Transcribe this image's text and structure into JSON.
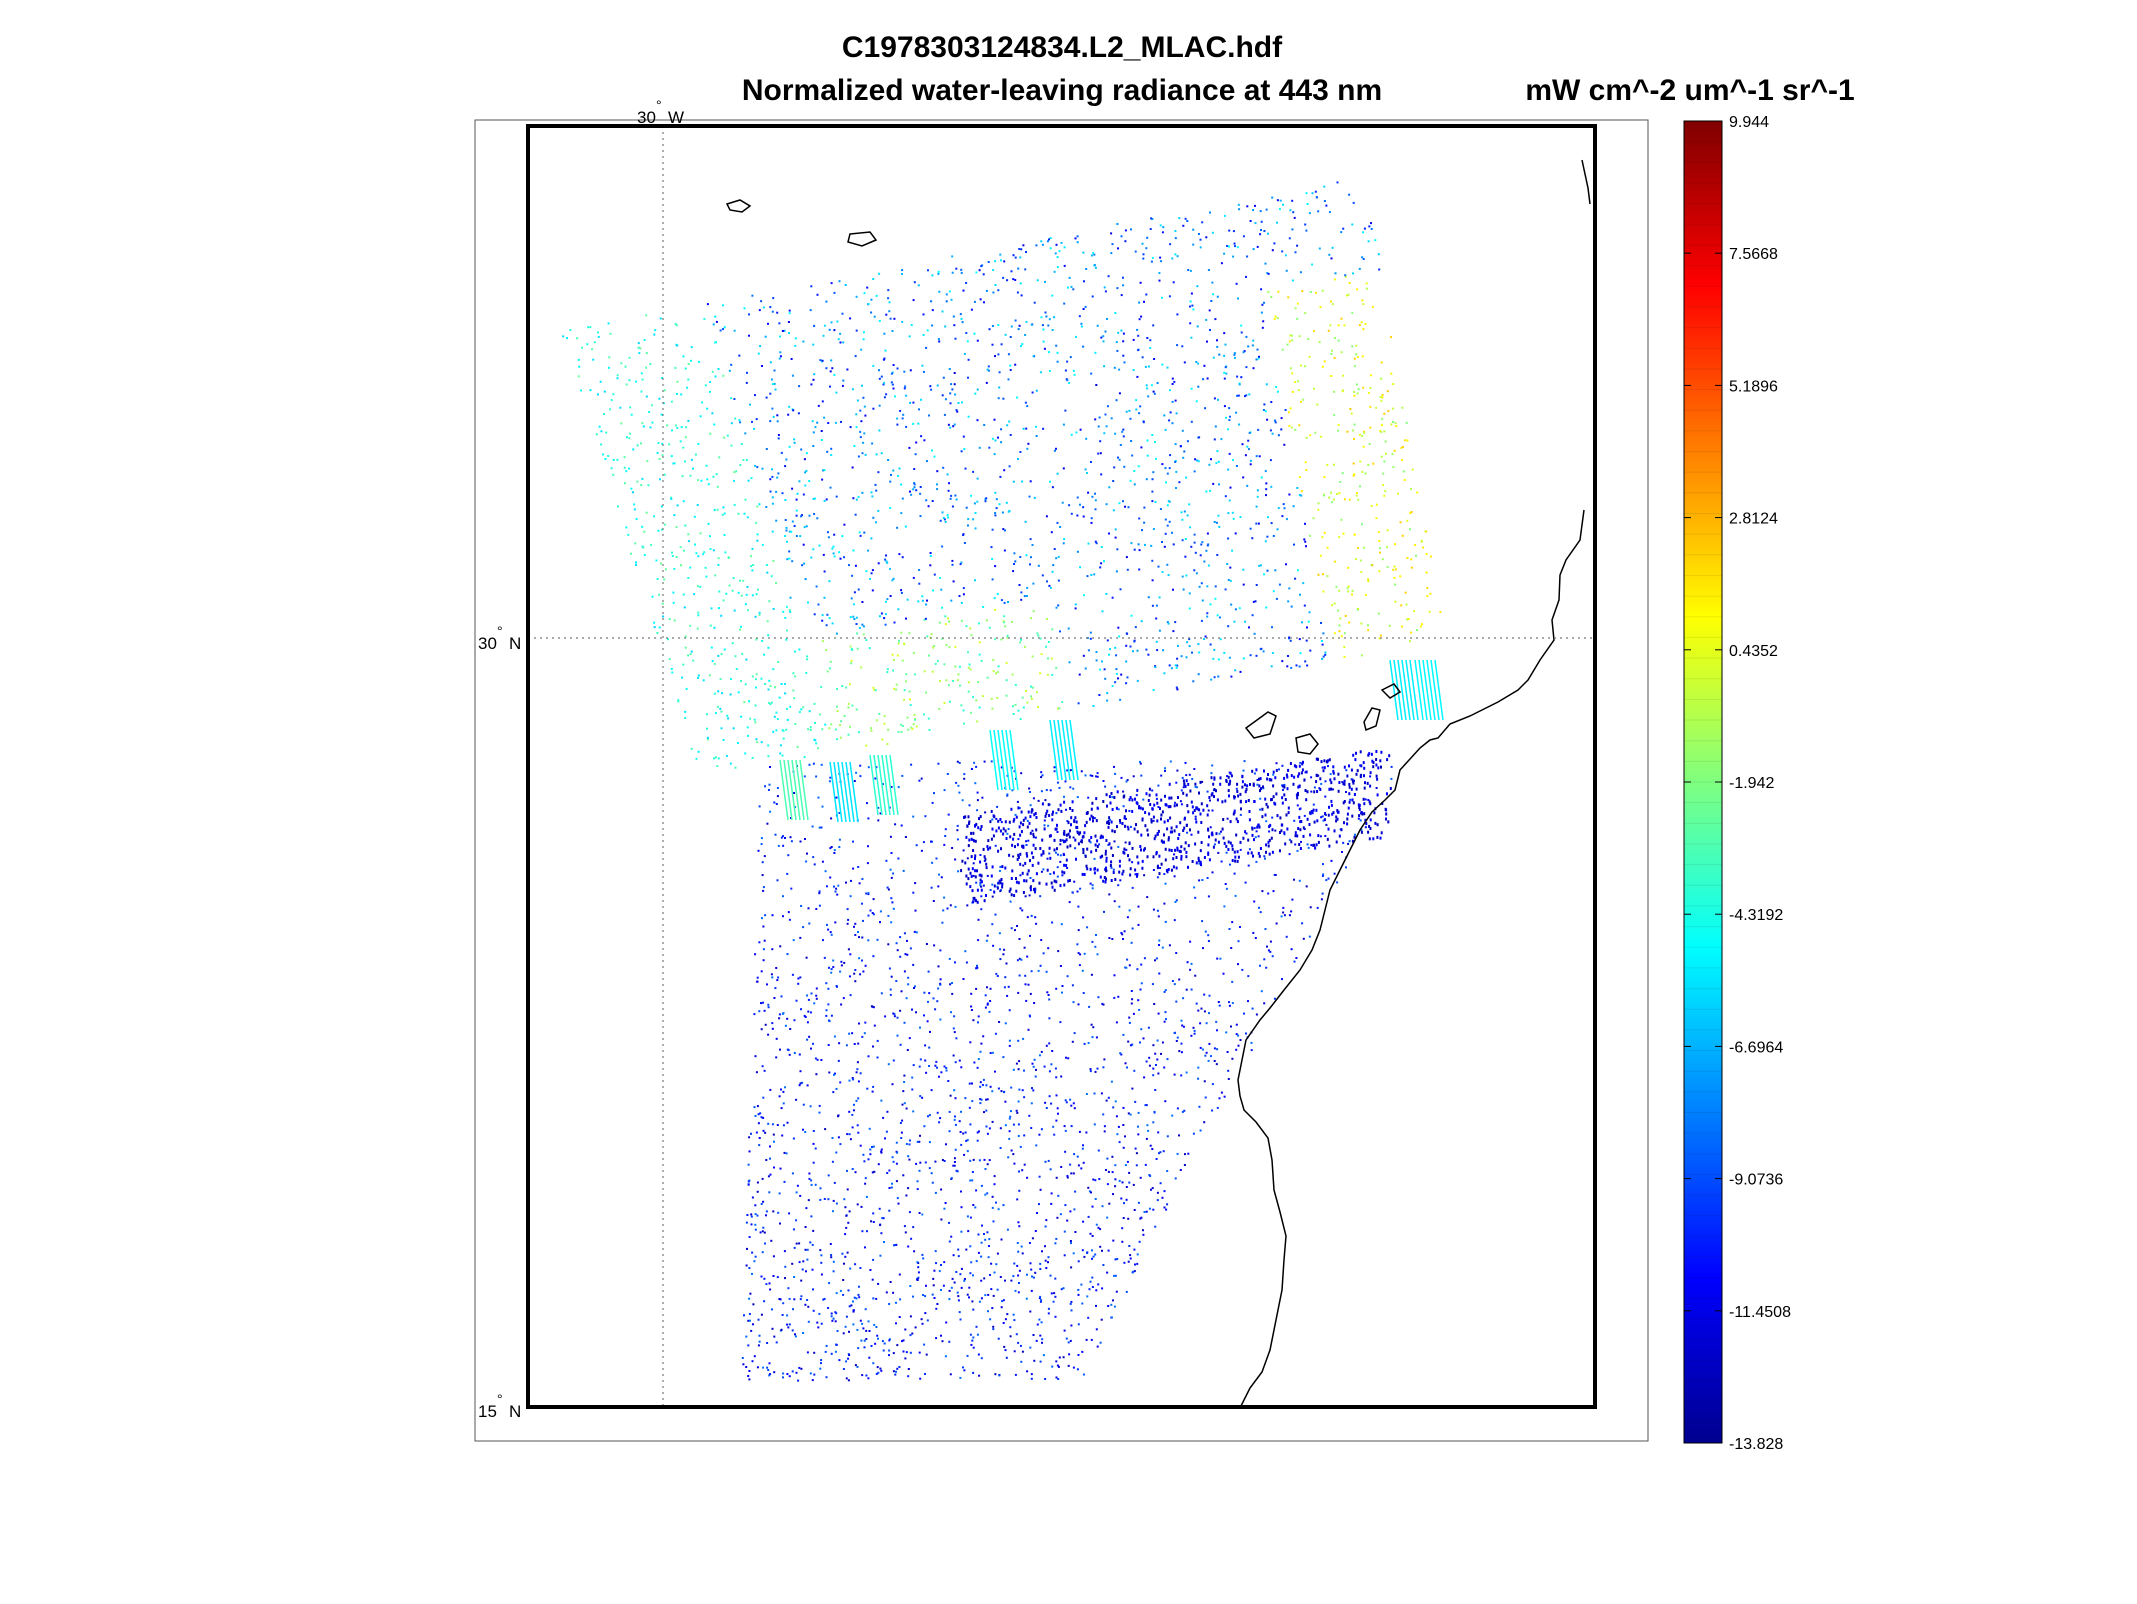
{
  "figure": {
    "filename": "C1978303124834.L2_MLAC.hdf",
    "product": "Normalized water-leaving radiance at 443 nm",
    "units": "mW cm^-2 um^-1 sr^-1"
  },
  "map": {
    "graticule": {
      "meridians": [
        {
          "value": -30,
          "label": "30",
          "hemisphere": "W"
        }
      ],
      "parallels": [
        {
          "value": 30,
          "label": "30",
          "hemisphere": "N"
        },
        {
          "value": 15,
          "label": "15",
          "hemisphere": "N"
        }
      ]
    },
    "coastline_color": "#000000",
    "grid_line_style": "dotted"
  },
  "colorbar": {
    "min": -13.828,
    "max": 9.944,
    "colormap": "jet",
    "ticks": [
      "9.944",
      "7.5668",
      "5.1896",
      "2.8124",
      "0.4352",
      "-1.942",
      "-4.3192",
      "-6.6964",
      "-9.0736",
      "-11.4508",
      "-13.828"
    ]
  }
}
